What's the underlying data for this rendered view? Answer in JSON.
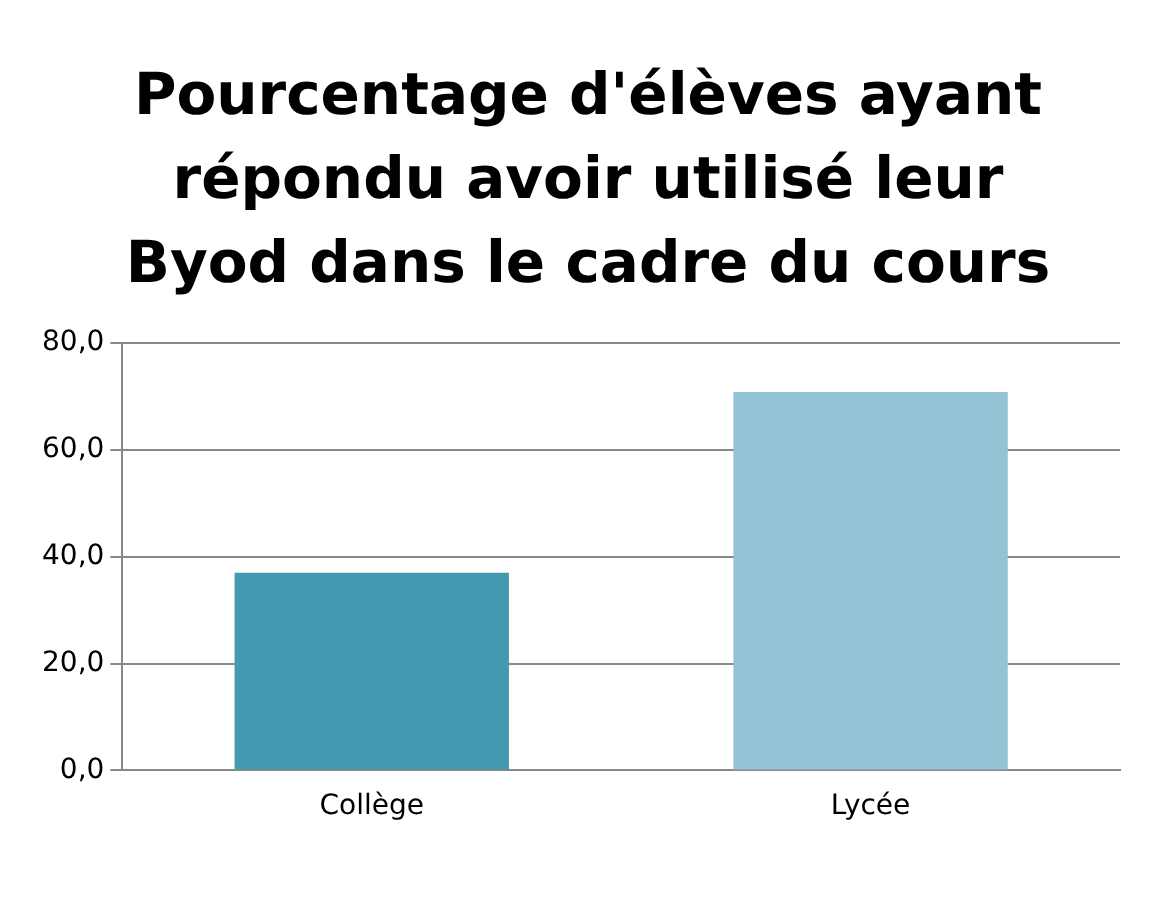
{
  "chart_data": {
    "type": "bar",
    "title": "Pourcentage d'élèves ayant répondu avoir utilisé leur Byod dans le cadre du cours",
    "categories": [
      "Collège",
      "Lycée"
    ],
    "values": [
      37.0,
      70.8
    ],
    "colors": [
      "#4299b0",
      "#93c3d5"
    ],
    "ylim": [
      0,
      80
    ],
    "yticks": [
      {
        "value": 0,
        "label": "0,0"
      },
      {
        "value": 20,
        "label": "20,0"
      },
      {
        "value": 40,
        "label": "40,0"
      },
      {
        "value": 60,
        "label": "60,0"
      },
      {
        "value": 80,
        "label": "80,0"
      }
    ],
    "grid": "y",
    "legend": false
  }
}
